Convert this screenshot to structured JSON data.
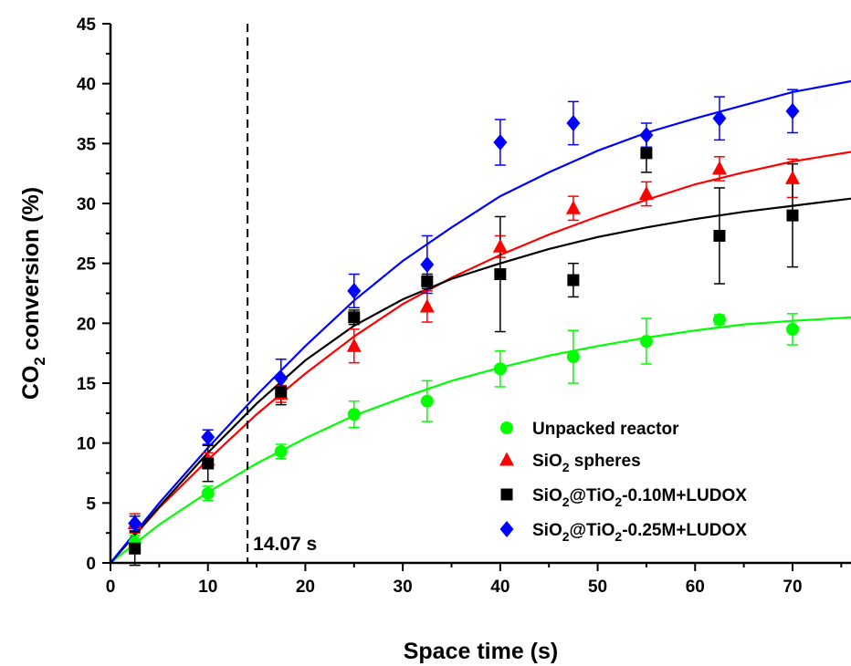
{
  "chart_data": {
    "type": "scatter",
    "title": "",
    "xlabel": "Space time (s)",
    "ylabel": {
      "pre": "CO",
      "sub": "2",
      "post": " conversion (%)"
    },
    "xlim": [
      0,
      76
    ],
    "ylim": [
      0,
      45
    ],
    "x_ticks": [
      "0",
      "10",
      "20",
      "30",
      "40",
      "50",
      "60",
      "70"
    ],
    "y_ticks": [
      "0",
      "5",
      "10",
      "15",
      "20",
      "25",
      "30",
      "35",
      "40",
      "45"
    ],
    "grid": false,
    "legend_position": "bottom-right",
    "annotation": {
      "x": 14.07,
      "label": "14.07 s",
      "style": "dashed vertical line"
    },
    "series": [
      {
        "name": "Unpacked reactor",
        "legend_parts": [
          {
            "t": "Unpacked reactor"
          }
        ],
        "color": "#00ff00",
        "marker": "circle",
        "x": [
          2.5,
          10,
          17.5,
          25,
          32.5,
          40,
          47.5,
          55,
          62.5,
          70
        ],
        "y": [
          1.7,
          5.8,
          9.3,
          12.4,
          13.5,
          16.2,
          17.2,
          18.5,
          20.3,
          19.5
        ],
        "err": [
          0.6,
          0.6,
          0.6,
          1.1,
          1.7,
          1.5,
          2.2,
          1.9,
          0.4,
          1.3
        ],
        "fit": [
          [
            0,
            0
          ],
          [
            5,
            3.2
          ],
          [
            10,
            5.9
          ],
          [
            15,
            8.3
          ],
          [
            20,
            10.4
          ],
          [
            25,
            12.3
          ],
          [
            30,
            13.8
          ],
          [
            35,
            15.2
          ],
          [
            40,
            16.3
          ],
          [
            45,
            17.3
          ],
          [
            50,
            18.1
          ],
          [
            55,
            18.8
          ],
          [
            60,
            19.4
          ],
          [
            65,
            19.9
          ],
          [
            70,
            20.2
          ],
          [
            76,
            20.5
          ]
        ]
      },
      {
        "name": "SiO2 spheres",
        "legend_parts": [
          {
            "t": "SiO"
          },
          {
            "t": "2",
            "sub": true
          },
          {
            "t": " spheres"
          }
        ],
        "color": "#ff0000",
        "marker": "triangle",
        "x": [
          2.5,
          10,
          17.5,
          25,
          32.5,
          40,
          47.5,
          55,
          62.5,
          70
        ],
        "y": [
          3.3,
          8.6,
          14.1,
          18.1,
          21.4,
          26.4,
          29.6,
          30.8,
          32.9,
          32.1
        ],
        "err": [
          0.8,
          0.6,
          0.7,
          1.4,
          1.3,
          0.9,
          1.0,
          1.0,
          1.0,
          1.6
        ],
        "fit": [
          [
            0,
            0
          ],
          [
            5,
            4.6
          ],
          [
            10,
            8.6
          ],
          [
            15,
            12.4
          ],
          [
            20,
            15.8
          ],
          [
            25,
            18.9
          ],
          [
            30,
            21.6
          ],
          [
            35,
            23.8
          ],
          [
            40,
            25.7
          ],
          [
            45,
            27.4
          ],
          [
            50,
            28.9
          ],
          [
            55,
            30.3
          ],
          [
            60,
            31.6
          ],
          [
            65,
            32.6
          ],
          [
            70,
            33.5
          ],
          [
            76,
            34.3
          ]
        ]
      },
      {
        "name": "SiO2@TiO2-0.10M+LUDOX",
        "legend_parts": [
          {
            "t": "SiO"
          },
          {
            "t": "2",
            "sub": true
          },
          {
            "t": "@TiO"
          },
          {
            "t": "2",
            "sub": true
          },
          {
            "t": "-0.10M+LUDOX"
          }
        ],
        "color": "#000000",
        "marker": "square",
        "x": [
          2.5,
          10,
          17.5,
          25,
          32.5,
          40,
          47.5,
          55,
          62.5,
          70
        ],
        "y": [
          1.2,
          8.3,
          14.3,
          20.5,
          23.5,
          24.1,
          23.6,
          34.2,
          27.3,
          29.0
        ],
        "err": [
          1.4,
          1.5,
          1.1,
          0.6,
          0.6,
          4.8,
          1.4,
          1.6,
          4.0,
          4.3
        ],
        "fit": [
          [
            0,
            0
          ],
          [
            5,
            4.7
          ],
          [
            10,
            9.2
          ],
          [
            15,
            13.3
          ],
          [
            20,
            16.9
          ],
          [
            25,
            19.8
          ],
          [
            30,
            22.0
          ],
          [
            35,
            23.7
          ],
          [
            40,
            25.0
          ],
          [
            45,
            26.2
          ],
          [
            50,
            27.2
          ],
          [
            55,
            28.0
          ],
          [
            60,
            28.7
          ],
          [
            65,
            29.3
          ],
          [
            70,
            29.8
          ],
          [
            76,
            30.4
          ]
        ]
      },
      {
        "name": "SiO2@TiO2-0.25M+LUDOX",
        "legend_parts": [
          {
            "t": "SiO"
          },
          {
            "t": "2",
            "sub": true
          },
          {
            "t": "@TiO"
          },
          {
            "t": "2",
            "sub": true
          },
          {
            "t": "-0.25M+LUDOX"
          }
        ],
        "color": "#0000ff",
        "marker": "diamond",
        "x": [
          2.5,
          10,
          17.5,
          25,
          32.5,
          40,
          47.5,
          55,
          62.5,
          70
        ],
        "y": [
          3.3,
          10.5,
          15.4,
          22.7,
          24.9,
          35.1,
          36.7,
          35.7,
          37.1,
          37.7
        ],
        "err": [
          0.6,
          0.6,
          1.6,
          1.4,
          2.4,
          1.9,
          1.8,
          1.0,
          1.8,
          1.8
        ],
        "fit": [
          [
            0,
            0
          ],
          [
            5,
            5.0
          ],
          [
            10,
            9.6
          ],
          [
            15,
            14.0
          ],
          [
            20,
            18.1
          ],
          [
            25,
            21.9
          ],
          [
            30,
            25.2
          ],
          [
            35,
            28.0
          ],
          [
            40,
            30.6
          ],
          [
            45,
            32.6
          ],
          [
            50,
            34.4
          ],
          [
            55,
            35.9
          ],
          [
            60,
            37.1
          ],
          [
            65,
            38.2
          ],
          [
            70,
            39.3
          ],
          [
            76,
            40.2
          ]
        ]
      }
    ]
  }
}
